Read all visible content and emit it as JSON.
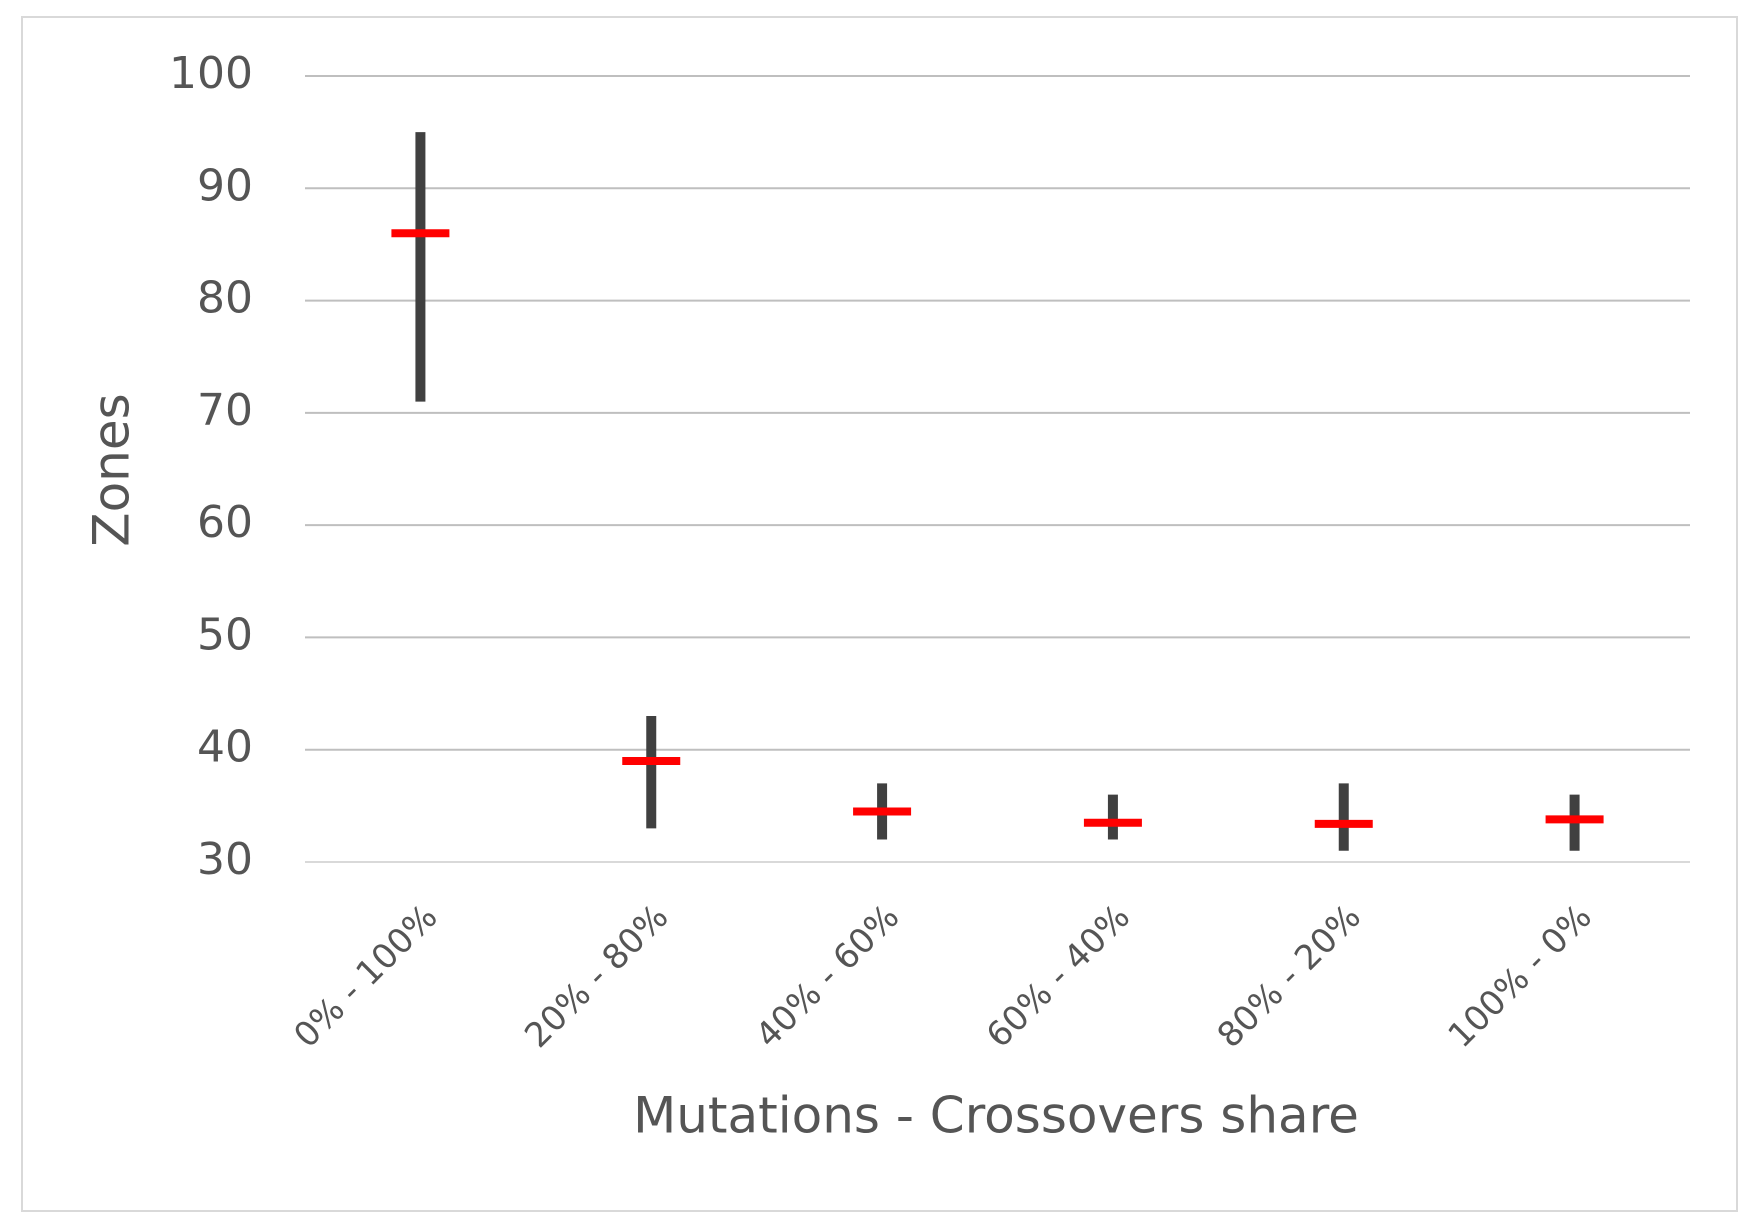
{
  "chart_data": {
    "type": "range",
    "categories": [
      "0% - 100%",
      "20% - 80%",
      "40% - 60%",
      "60% - 40%",
      "80% - 20%",
      "100% - 0%"
    ],
    "high": [
      95,
      43,
      37,
      36,
      37,
      36
    ],
    "low": [
      71,
      33,
      32,
      32,
      31,
      31
    ],
    "values": [
      86,
      39,
      34.5,
      33.5,
      33.4,
      33.8
    ],
    "color": "#404040",
    "marker_color": "#ff0000",
    "ylim": [
      30,
      100
    ],
    "yticks": [
      30,
      40,
      50,
      60,
      70,
      80,
      90,
      100
    ],
    "grid": true,
    "y_label": "Zones",
    "x_label": "Mutations  - Crossovers share"
  }
}
